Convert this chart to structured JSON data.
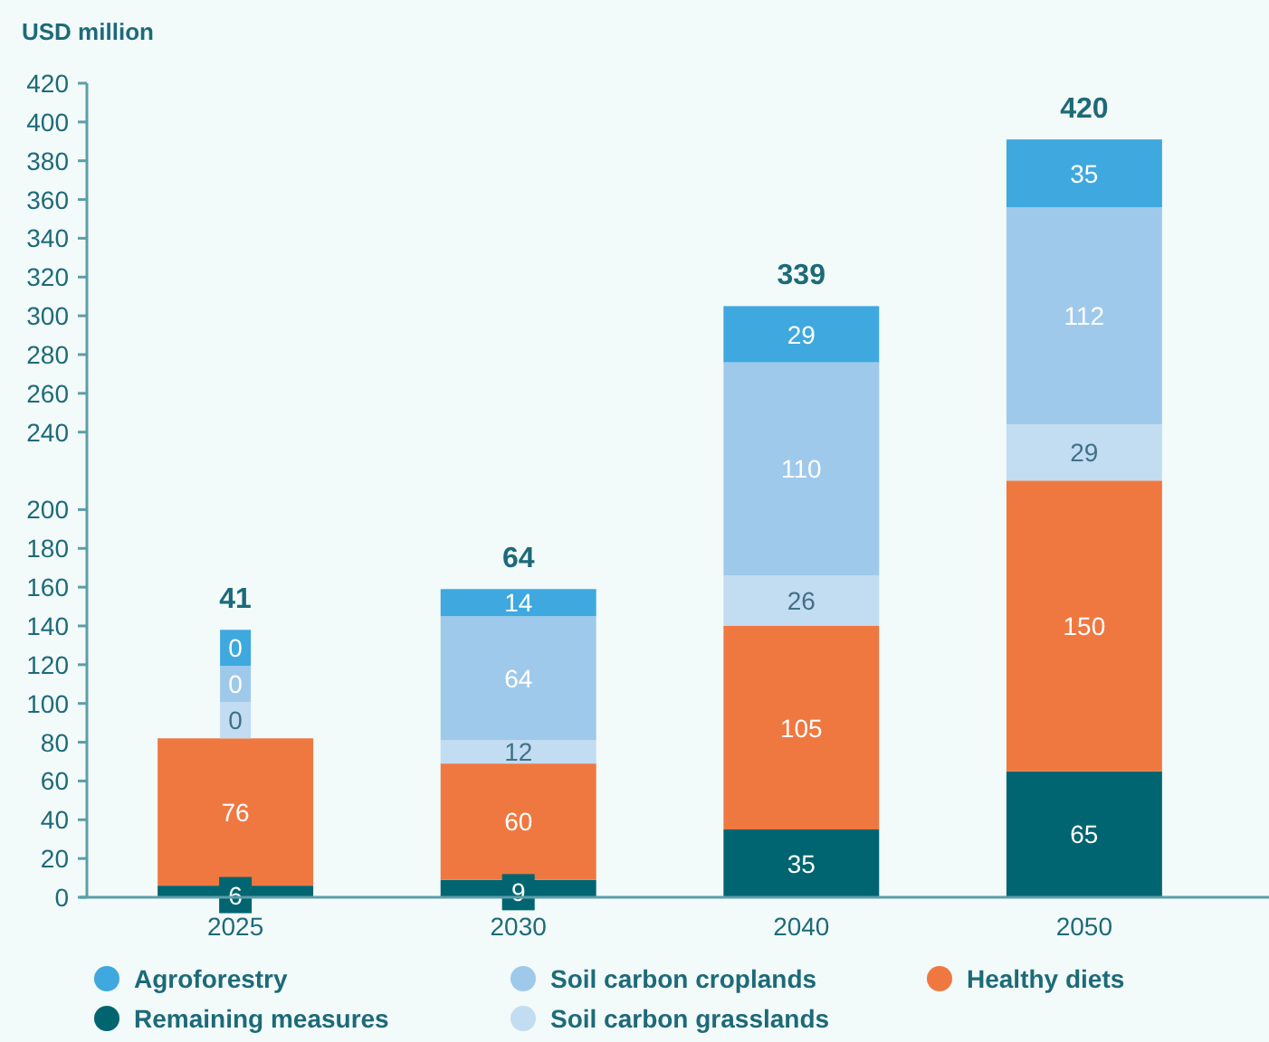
{
  "chart_data": {
    "type": "bar",
    "stacked": true,
    "ylabel": "USD million",
    "categories": [
      "2025",
      "2030",
      "2040",
      "2050"
    ],
    "ylim": [
      0,
      420
    ],
    "yticks": [
      0,
      20,
      40,
      60,
      80,
      100,
      120,
      140,
      160,
      180,
      200,
      240,
      260,
      280,
      300,
      320,
      340,
      360,
      380,
      400,
      420
    ],
    "series": [
      {
        "name": "Remaining measures",
        "color": "#006570",
        "values": [
          6,
          9,
          35,
          65
        ]
      },
      {
        "name": "Healthy diets",
        "color": "#ef7841",
        "values": [
          76,
          60,
          105,
          150
        ]
      },
      {
        "name": "Soil carbon grasslands",
        "color": "#c2dcf2",
        "values": [
          0,
          12,
          26,
          29
        ]
      },
      {
        "name": "Soil carbon croplands",
        "color": "#9fc9eb",
        "values": [
          0,
          64,
          110,
          112
        ]
      },
      {
        "name": "Agroforestry",
        "color": "#3ea8df",
        "values": [
          0,
          14,
          29,
          35
        ]
      }
    ],
    "annotations": [
      "41",
      "64",
      "339",
      "420"
    ],
    "data_labels": true,
    "legend": "bottom"
  }
}
